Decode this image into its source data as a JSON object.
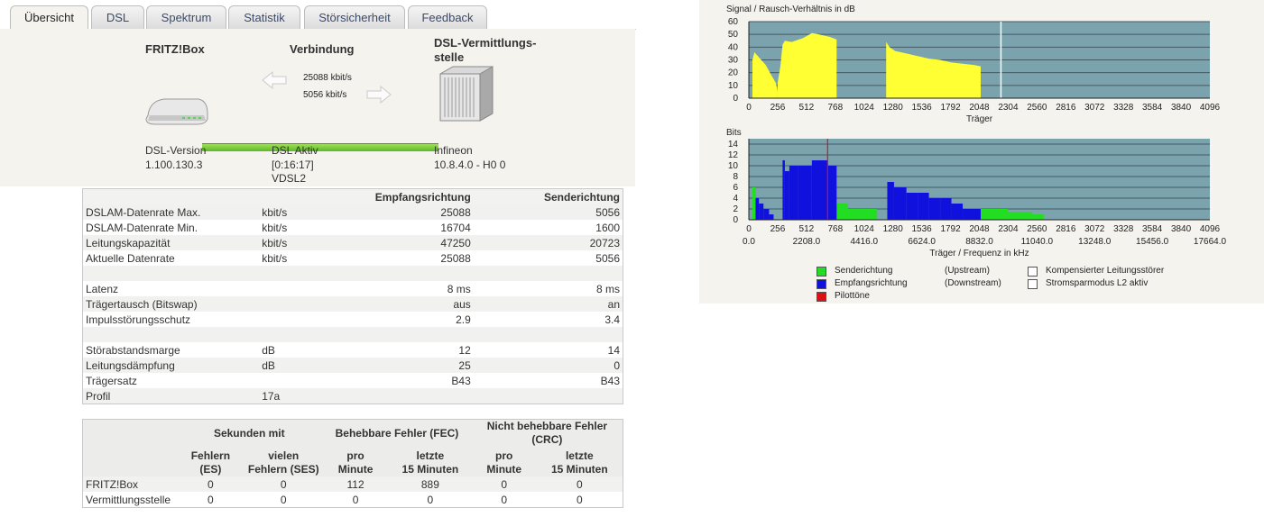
{
  "tabs": [
    "Übersicht",
    "DSL",
    "Spektrum",
    "Statistik",
    "Störsicherheit",
    "Feedback"
  ],
  "overview": {
    "fritzbox_title": "FRITZ!Box",
    "connection_title": "Verbindung",
    "dslam_title_1": "DSL-Vermittlungs-",
    "dslam_title_2": "stelle",
    "rate_down": "25088 kbit/s",
    "rate_up": "5056 kbit/s",
    "dsl_version_label": "DSL-Version",
    "dsl_version_value": "1.100.130.3",
    "dsl_status": "DSL Aktiv",
    "dsl_uptime": "[0:16:17]",
    "dsl_mode": "VDSL2",
    "dslam_vendor": "Infineon",
    "dslam_version": "10.8.4.0 - H0 0"
  },
  "table1": {
    "headers": [
      "",
      "",
      "Empfangsrichtung",
      "Senderichtung"
    ],
    "rows": [
      [
        "DSLAM-Datenrate Max.",
        "kbit/s",
        "25088",
        "5056"
      ],
      [
        "DSLAM-Datenrate Min.",
        "kbit/s",
        "16704",
        "1600"
      ],
      [
        "Leitungskapazität",
        "kbit/s",
        "47250",
        "20723"
      ],
      [
        "Aktuelle Datenrate",
        "kbit/s",
        "25088",
        "5056"
      ],
      [
        "",
        "",
        "",
        ""
      ],
      [
        "Latenz",
        "",
        "8 ms",
        "8 ms"
      ],
      [
        "Trägertausch (Bitswap)",
        "",
        "aus",
        "an"
      ],
      [
        "Impulsstörungsschutz",
        "",
        "2.9",
        "3.4"
      ],
      [
        "",
        "",
        "",
        ""
      ],
      [
        "Störabstandsmarge",
        "dB",
        "12",
        "14"
      ],
      [
        "Leitungsdämpfung",
        "dB",
        "25",
        "0"
      ],
      [
        "Trägersatz",
        "",
        "B43",
        "B43"
      ],
      [
        "Profil",
        "17a",
        "",
        ""
      ]
    ]
  },
  "table2": {
    "group_headers": [
      "Sekunden mit",
      "Behebbare Fehler (FEC)",
      "Nicht behebbare Fehler (CRC)"
    ],
    "sub_headers": [
      [
        "Fehlern (ES)"
      ],
      [
        "vielen",
        "Fehlern (SES)"
      ],
      [
        "pro",
        "Minute"
      ],
      [
        "letzte",
        "15 Minuten"
      ],
      [
        "pro",
        "Minute"
      ],
      [
        "letzte",
        "15 Minuten"
      ]
    ],
    "rows": [
      [
        "FRITZ!Box",
        "0",
        "0",
        "112",
        "889",
        "0",
        "0"
      ],
      [
        "Vermittlungsstelle",
        "0",
        "0",
        "0",
        "0",
        "0",
        "0"
      ]
    ]
  },
  "chart_data": [
    {
      "type": "area",
      "title": "Signal / Rausch-Verhältnis in dB",
      "xlabel": "Träger",
      "ylabel": "",
      "xlim": [
        0,
        4096
      ],
      "ylim": [
        0,
        60
      ],
      "xticks": [
        0,
        256,
        512,
        768,
        1024,
        1280,
        1536,
        1792,
        2048,
        2304,
        2560,
        2816,
        3072,
        3328,
        3584,
        3840,
        4096
      ],
      "yticks": [
        0,
        10,
        20,
        30,
        40,
        50,
        60
      ],
      "background": "#7aa3ae",
      "bar_color": "#ffff33",
      "marker_line_x": 2240,
      "segments": [
        {
          "x": [
            32,
            50,
            100,
            150,
            200,
            240,
            256
          ],
          "y": [
            30,
            36,
            31,
            26,
            18,
            12,
            5
          ]
        },
        {
          "x": [
            256,
            280,
            300,
            320,
            380,
            480,
            560,
            620,
            720,
            780
          ],
          "y": [
            12,
            25,
            42,
            45,
            44,
            47,
            51,
            50,
            48,
            46
          ]
        },
        {
          "x": [
            1220,
            1250,
            1300,
            1400,
            1500,
            1600,
            1700,
            1800,
            1900,
            2000,
            2060
          ],
          "y": [
            44,
            40,
            37,
            35,
            33,
            31,
            30,
            28,
            27,
            26,
            25
          ]
        }
      ]
    },
    {
      "type": "bar",
      "title": "Bits",
      "xlabel": "Träger / Frequenz in kHz",
      "ylabel": "",
      "xlim": [
        0,
        4096
      ],
      "ylim": [
        0,
        15
      ],
      "xticks": [
        0,
        256,
        512,
        768,
        1024,
        1280,
        1536,
        1792,
        2048,
        2304,
        2560,
        2816,
        3072,
        3328,
        3584,
        3840,
        4096
      ],
      "xticks_freq": [
        "0.0",
        "2208.0",
        "4416.0",
        "6624.0",
        "8832.0",
        "11040.0",
        "13248.0",
        "15456.0",
        "17664.0"
      ],
      "yticks": [
        0,
        2,
        4,
        6,
        8,
        10,
        12,
        14
      ],
      "background": "#7aa3ae",
      "pilot_x": 700,
      "series": [
        {
          "name": "Senderichtung",
          "color": "#22dd22",
          "ranges": [
            [
              32,
              60,
              6
            ],
            [
              60,
              80,
              4
            ],
            [
              780,
              880,
              3
            ],
            [
              880,
              1000,
              2
            ],
            [
              1000,
              1140,
              2
            ],
            [
              2060,
              2300,
              2
            ],
            [
              2300,
              2520,
              1.5
            ],
            [
              2520,
              2620,
              1
            ]
          ]
        },
        {
          "name": "Empfangsrichtung",
          "color": "#1111dd",
          "ranges": [
            [
              60,
              90,
              4
            ],
            [
              90,
              130,
              3
            ],
            [
              130,
              180,
              2
            ],
            [
              180,
              220,
              1
            ],
            [
              300,
              320,
              11
            ],
            [
              320,
              360,
              9
            ],
            [
              360,
              440,
              10
            ],
            [
              440,
              560,
              10
            ],
            [
              560,
              700,
              11
            ],
            [
              700,
              780,
              10
            ],
            [
              1230,
              1290,
              7
            ],
            [
              1290,
              1400,
              6
            ],
            [
              1400,
              1500,
              5
            ],
            [
              1500,
              1600,
              5
            ],
            [
              1600,
              1700,
              4
            ],
            [
              1700,
              1800,
              4
            ],
            [
              1800,
              1900,
              3
            ],
            [
              1900,
              2060,
              2
            ]
          ]
        }
      ]
    }
  ],
  "legend": [
    {
      "label": "Senderichtung",
      "qualifier": "(Upstream)",
      "color": "#22dd22"
    },
    {
      "label": "Empfangsrichtung",
      "qualifier": "(Downstream)",
      "color": "#1111dd"
    },
    {
      "label": "Pilottöne",
      "qualifier": "",
      "color": "#dd1111"
    },
    {
      "label": "Kompensierter Leitungsstörer",
      "color": "#ffffff"
    },
    {
      "label": "Stromsparmodus L2 aktiv",
      "color": "#ffffff"
    }
  ]
}
